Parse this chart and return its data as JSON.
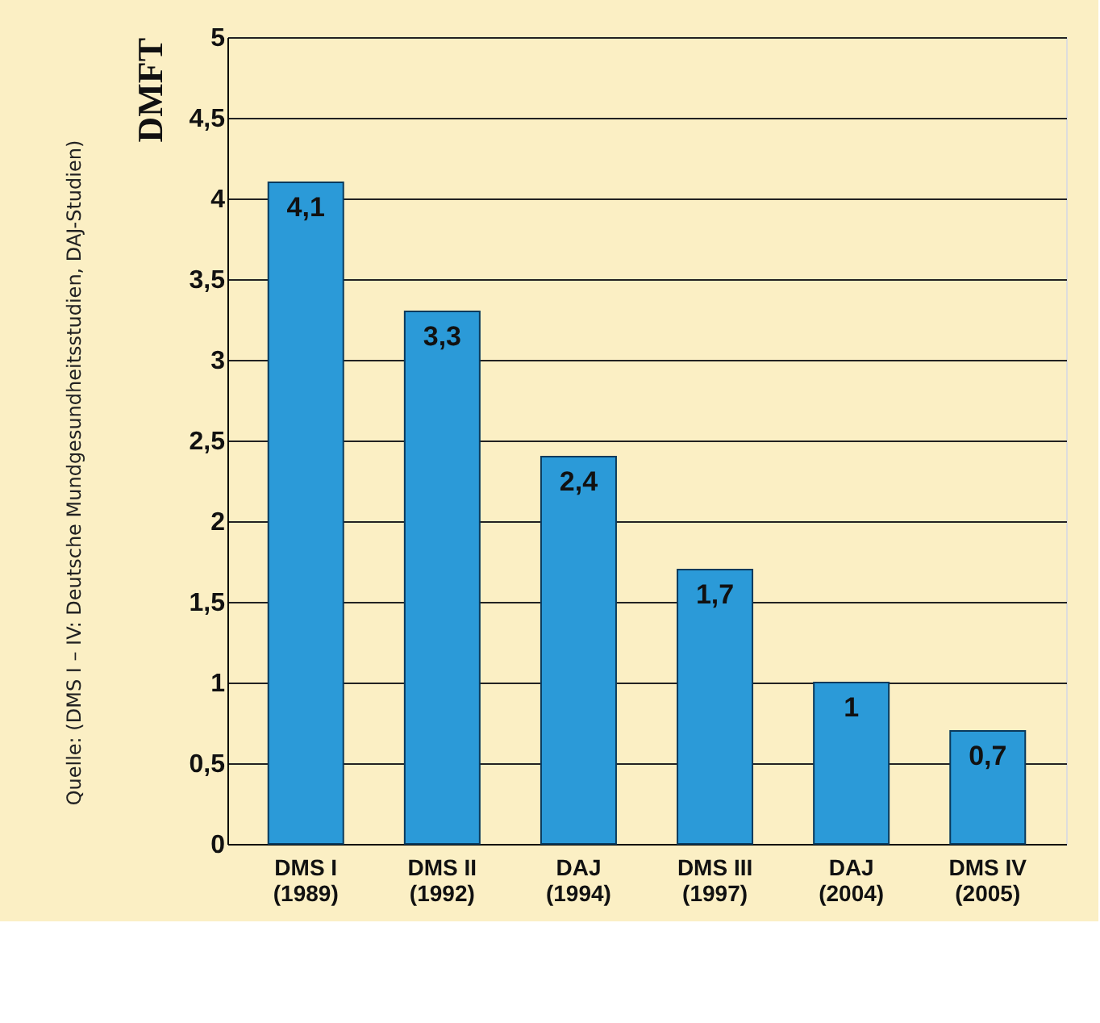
{
  "chart_data": {
    "type": "bar",
    "ylabel": "DMFT",
    "categories": [
      "DMS I\n(1989)",
      "DMS II\n(1992)",
      "DAJ\n(1994)",
      "DMS III\n(1997)",
      "DAJ\n(2004)",
      "DMS IV\n(2005)"
    ],
    "values": [
      4.1,
      3.3,
      2.4,
      1.7,
      1,
      0.7
    ],
    "value_labels": [
      "4,1",
      "3,3",
      "2,4",
      "1,7",
      "1",
      "0,7"
    ],
    "color": "#2b9ad8",
    "ylim": [
      0,
      5
    ],
    "yticks": [
      0,
      {
        "value": 0.5,
        "label": "0,5"
      },
      1,
      {
        "value": 1.5,
        "label": "1,5"
      },
      2,
      {
        "value": 2.5,
        "label": "2,5"
      },
      3,
      {
        "value": 3.5,
        "label": "3,5"
      },
      4,
      {
        "value": 4.5,
        "label": "4,5"
      },
      5
    ],
    "grid": "y",
    "annotations": [
      "Quelle: (DMS I – IV: Deutsche Mundgesundheitsstudien, DAJ-Studien)"
    ]
  }
}
